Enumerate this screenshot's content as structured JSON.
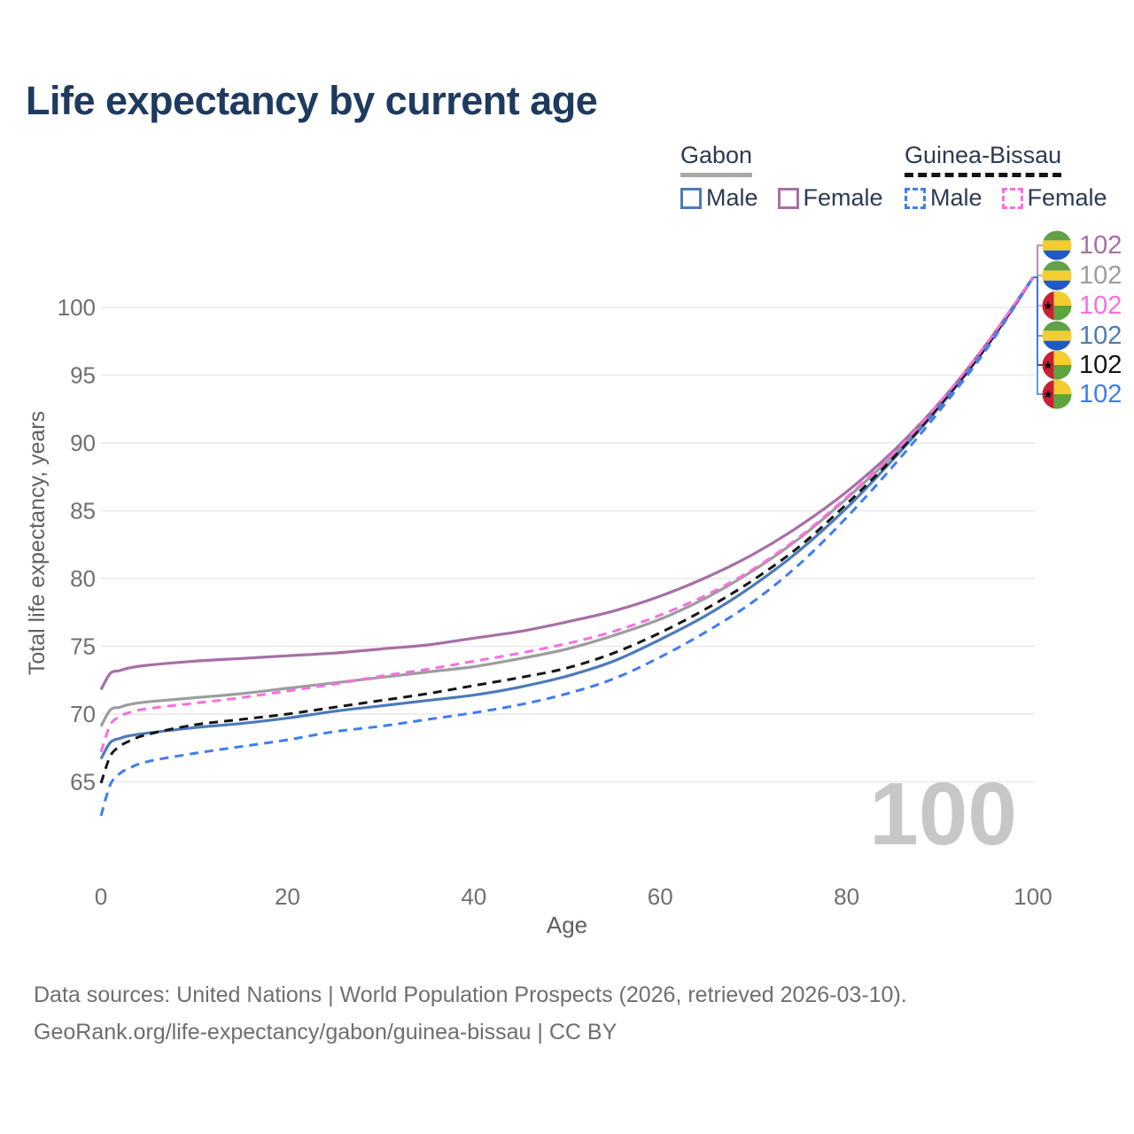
{
  "title": "Life expectancy by current age",
  "legend": {
    "groups": [
      {
        "name": "Gabon",
        "line_style": "solid",
        "header_color": "#a8a8a8",
        "items": [
          {
            "label": "Male",
            "color": "#4c7bb9"
          },
          {
            "label": "Female",
            "color": "#a76fa6"
          }
        ]
      },
      {
        "name": "Guinea-Bissau",
        "line_style": "dashed",
        "header_color": "#141414",
        "items": [
          {
            "label": "Male",
            "color": "#3f7df2"
          },
          {
            "label": "Female",
            "color": "#f96fdf"
          }
        ]
      }
    ]
  },
  "watermark": "100",
  "footer": {
    "line1": "Data sources: United Nations | World Population Prospects (2026, retrieved 2026-03-10).",
    "line2": "GeoRank.org/life-expectancy/gabon/guinea-bissau | CC BY"
  },
  "chart_data": {
    "type": "line",
    "title": "Life expectancy by current age",
    "xlabel": "Age",
    "ylabel": "Total life expectancy, years",
    "x_ticks": [
      0,
      20,
      40,
      60,
      80,
      100
    ],
    "y_ticks": [
      65,
      70,
      75,
      80,
      85,
      90,
      95,
      100
    ],
    "xlim": [
      0,
      100
    ],
    "ylim": [
      61,
      103
    ],
    "grid": "horizontal",
    "legend_position": "top-right",
    "ages": [
      0,
      1,
      2,
      3,
      5,
      10,
      15,
      20,
      25,
      30,
      35,
      40,
      45,
      50,
      55,
      60,
      65,
      70,
      75,
      80,
      85,
      90,
      95,
      100
    ],
    "series": [
      {
        "name": "Gabon Female",
        "key": "gabon-female",
        "color": "#a76fa6",
        "dash": false,
        "flag": "gabon",
        "end_label": "102",
        "values": [
          71.8,
          73.0,
          73.2,
          73.4,
          73.6,
          73.9,
          74.1,
          74.3,
          74.5,
          74.8,
          75.1,
          75.6,
          76.1,
          76.8,
          77.6,
          78.7,
          80.1,
          81.8,
          83.9,
          86.4,
          89.4,
          93.0,
          97.3,
          102.2
        ]
      },
      {
        "name": "Gabon",
        "key": "gabon-both",
        "color": "#9d9d9d",
        "dash": false,
        "flag": "gabon",
        "end_label": "102",
        "values": [
          69.1,
          70.3,
          70.5,
          70.7,
          70.9,
          71.2,
          71.5,
          71.9,
          72.3,
          72.7,
          73.1,
          73.5,
          74.1,
          74.8,
          75.8,
          77.0,
          78.6,
          80.6,
          83.0,
          85.9,
          89.1,
          92.9,
          97.2,
          102.2
        ]
      },
      {
        "name": "Guinea-Bissau Female",
        "key": "guinea-bissau-female",
        "color": "#f96fdf",
        "dash": true,
        "flag": "guinea-bissau",
        "end_label": "102",
        "values": [
          67.2,
          69.2,
          69.8,
          70.1,
          70.4,
          70.8,
          71.2,
          71.7,
          72.2,
          72.8,
          73.3,
          73.9,
          74.5,
          75.2,
          76.1,
          77.3,
          78.8,
          80.7,
          83.1,
          86.0,
          89.2,
          93.0,
          97.3,
          102.2
        ]
      },
      {
        "name": "Gabon Male",
        "key": "gabon-male",
        "color": "#4c7bb9",
        "dash": false,
        "flag": "gabon",
        "end_label": "102",
        "values": [
          66.7,
          67.9,
          68.2,
          68.4,
          68.6,
          69.0,
          69.3,
          69.7,
          70.2,
          70.6,
          71.0,
          71.4,
          72.0,
          72.8,
          73.9,
          75.5,
          77.3,
          79.5,
          82.1,
          85.2,
          88.8,
          92.7,
          97.1,
          102.2
        ]
      },
      {
        "name": "Guinea-Bissau",
        "key": "guinea-bissau-both",
        "color": "#151515",
        "dash": true,
        "flag": "guinea-bissau",
        "end_label": "102",
        "values": [
          64.9,
          66.9,
          67.6,
          68.0,
          68.5,
          69.2,
          69.6,
          70.0,
          70.5,
          71.0,
          71.5,
          72.1,
          72.7,
          73.4,
          74.5,
          76.0,
          77.8,
          79.9,
          82.4,
          85.5,
          88.9,
          92.8,
          97.1,
          102.2
        ]
      },
      {
        "name": "Guinea-Bissau Male",
        "key": "guinea-bissau-male",
        "color": "#3f7df2",
        "dash": true,
        "flag": "guinea-bissau",
        "end_label": "102",
        "values": [
          62.5,
          64.8,
          65.6,
          66.0,
          66.5,
          67.1,
          67.6,
          68.1,
          68.7,
          69.1,
          69.6,
          70.1,
          70.7,
          71.5,
          72.6,
          74.2,
          76.1,
          78.3,
          81.1,
          84.5,
          88.3,
          92.4,
          96.9,
          102.2
        ]
      }
    ],
    "flag_colors": {
      "gabon": {
        "green": "#61a147",
        "yellow": "#f3cd32",
        "blue": "#2059c3"
      },
      "guinea_bissau": {
        "red": "#c92133",
        "yellow": "#f3cd32",
        "green": "#5ea43c",
        "star": "#000000"
      }
    }
  }
}
